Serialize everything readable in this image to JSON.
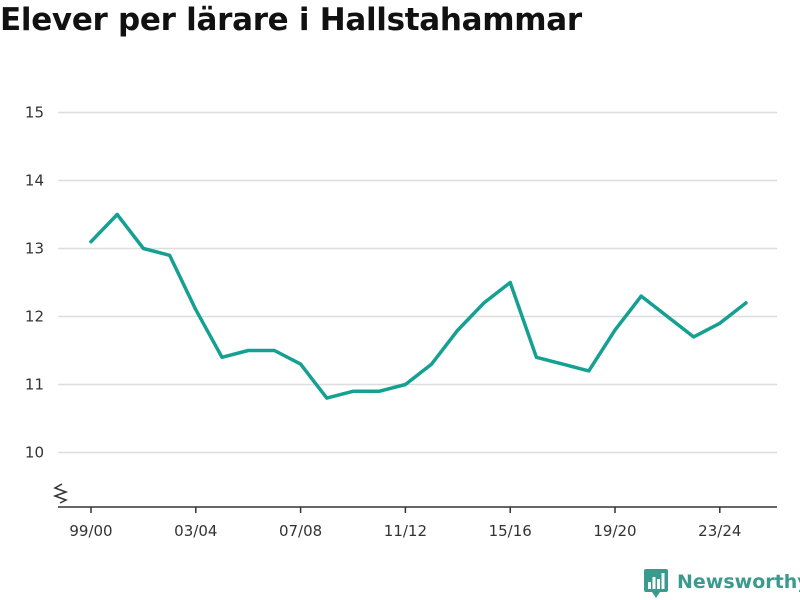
{
  "title": "Elever per lärare i Hallstahammar",
  "brand": {
    "name": "Newsworthy",
    "logo_icon": "bar-chart-chat-icon",
    "color": "#3a9a8e"
  },
  "colors": {
    "series": "#15a092",
    "grid": "#dddddd",
    "axis": "#333333"
  },
  "chart_data": {
    "type": "line",
    "title": "Elever per lärare i Hallstahammar",
    "xlabel": "",
    "ylabel": "",
    "x": [
      "99/00",
      "00/01",
      "01/02",
      "02/03",
      "03/04",
      "04/05",
      "05/06",
      "06/07",
      "07/08",
      "08/09",
      "09/10",
      "10/11",
      "11/12",
      "12/13",
      "13/14",
      "14/15",
      "15/16",
      "16/17",
      "17/18",
      "18/19",
      "19/20",
      "20/21",
      "21/22",
      "22/23",
      "23/24",
      "24/25"
    ],
    "x_tick_labels": [
      "99/00",
      "03/04",
      "07/08",
      "11/12",
      "15/16",
      "19/20",
      "23/24"
    ],
    "y_ticks": [
      10,
      11,
      12,
      13,
      14,
      15
    ],
    "ylim": [
      9.2,
      15.2
    ],
    "y_axis_broken": true,
    "grid": true,
    "legend": "none",
    "series": [
      {
        "values": [
          13.1,
          13.5,
          13.0,
          12.9,
          12.1,
          11.4,
          11.5,
          11.5,
          11.3,
          10.8,
          10.9,
          10.9,
          11.0,
          11.3,
          11.8,
          12.2,
          12.5,
          11.4,
          11.3,
          11.2,
          11.8,
          12.3,
          12.0,
          11.7,
          11.9,
          12.2
        ]
      }
    ]
  }
}
